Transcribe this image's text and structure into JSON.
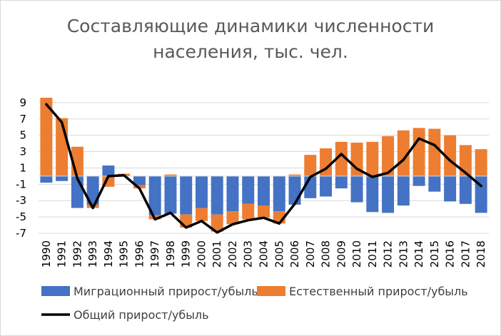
{
  "chart_data": {
    "type": "bar",
    "title_lines": [
      "Составляющие динамики численности",
      "населения, тыс. чел."
    ],
    "categories": [
      "1990",
      "1991",
      "1992",
      "1993",
      "1994",
      "1995",
      "1996",
      "1997",
      "1998",
      "1999",
      "2000",
      "2001",
      "2002",
      "2003",
      "2004",
      "2005",
      "2006",
      "2007",
      "2008",
      "2009",
      "2010",
      "2011",
      "2012",
      "2013",
      "2014",
      "2015",
      "2016",
      "2017",
      "2018"
    ],
    "series": [
      {
        "name": "Миграционный прирост/убыль",
        "kind": "bar",
        "color": "#4472c4",
        "values": [
          -0.8,
          -0.6,
          -3.9,
          -3.5,
          1.3,
          0.1,
          -1.1,
          -4.8,
          -4.6,
          -4.7,
          -3.9,
          -4.7,
          -4.3,
          -3.4,
          -3.6,
          -4.3,
          -3.5,
          -2.7,
          -2.5,
          -1.5,
          -3.2,
          -4.4,
          -4.5,
          -3.6,
          -1.2,
          -1.9,
          -3.1,
          -3.4,
          -4.5
        ]
      },
      {
        "name": "Естественный прирост/убыль",
        "kind": "bar",
        "color": "#ed7d31",
        "values": [
          9.6,
          7.1,
          3.6,
          -0.4,
          -1.3,
          0.2,
          -0.4,
          -0.5,
          0.2,
          -1.6,
          -1.6,
          -2.1,
          -1.6,
          -1.9,
          -1.5,
          -1.5,
          0.2,
          2.6,
          3.4,
          4.2,
          4.1,
          4.2,
          4.9,
          5.6,
          5.9,
          5.8,
          5.0,
          3.8,
          3.3
        ]
      },
      {
        "name": "Общий прирост/убыль",
        "kind": "line",
        "color": "#000000",
        "values": [
          8.8,
          6.6,
          -0.3,
          -3.9,
          0.0,
          0.1,
          -1.5,
          -5.3,
          -4.5,
          -6.3,
          -5.5,
          -6.9,
          -5.9,
          -5.4,
          -5.1,
          -5.8,
          -3.4,
          -0.1,
          0.9,
          2.7,
          0.9,
          -0.1,
          0.4,
          2.0,
          4.6,
          3.8,
          1.9,
          0.4,
          -1.2
        ]
      }
    ],
    "ylim": [
      -7,
      11
    ],
    "yticks": [
      -7,
      -5,
      -3,
      -1,
      1,
      3,
      5,
      7,
      9
    ],
    "ytick_labels": [
      "-7",
      "-5",
      "-3",
      "-1",
      "1",
      "3",
      "5",
      "7",
      "9"
    ],
    "gridlines": true,
    "legend_position": "bottom"
  }
}
